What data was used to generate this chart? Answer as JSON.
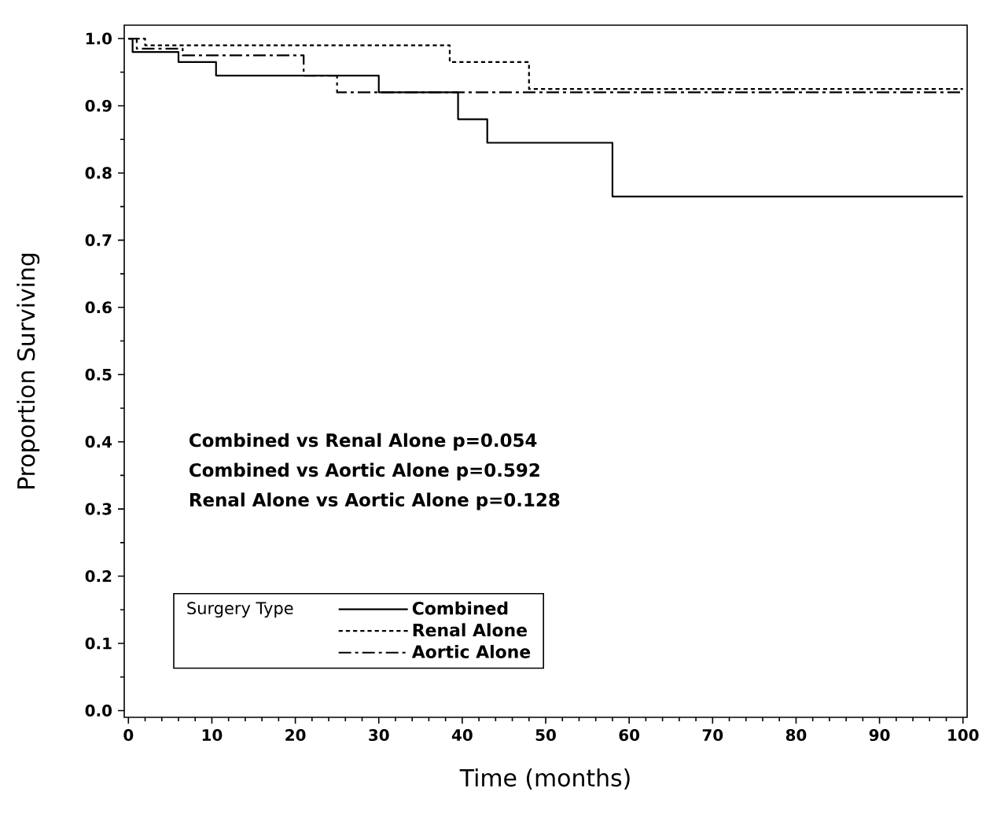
{
  "chart_data": {
    "type": "step",
    "xlabel": "Time (months)",
    "ylabel": "Proportion Surviving",
    "legend_title": "Surgery Type",
    "legend": "bottom left",
    "annotations": [
      "Combined vs Renal Alone p=0.054",
      "Combined vs Aortic Alone p=0.592",
      "Renal Alone vs Aortic Alone p=0.128"
    ],
    "xlim": [
      -0.5,
      100.5
    ],
    "ylim": [
      -0.01,
      1.02
    ],
    "xticks": [
      0,
      10,
      20,
      30,
      40,
      50,
      60,
      70,
      80,
      90,
      100
    ],
    "yticks": [
      {
        "value": 0,
        "label": "0.0"
      },
      0.1,
      0.2,
      0.3,
      0.4,
      0.5,
      0.6,
      0.7,
      0.8,
      0.9,
      {
        "value": 1,
        "label": "1.0"
      }
    ],
    "series": [
      {
        "name": "Combined",
        "color": "#000000",
        "line_style": "solid",
        "x": [
          0,
          0.5,
          6,
          10.5,
          30,
          39.5,
          43,
          58,
          100
        ],
        "values": [
          1.0,
          0.98,
          0.965,
          0.945,
          0.92,
          0.88,
          0.845,
          0.765,
          0.765
        ]
      },
      {
        "name": "Renal Alone",
        "color": "#000000",
        "line_style": "dotted",
        "x": [
          0,
          2,
          38.5,
          48,
          100
        ],
        "values": [
          1.0,
          0.99,
          0.965,
          0.925,
          0.925
        ]
      },
      {
        "name": "Aortic Alone",
        "color": "#000000",
        "line_style": "dashed",
        "x": [
          0,
          1,
          6.5,
          21,
          25,
          100
        ],
        "values": [
          1.0,
          0.985,
          0.975,
          0.945,
          0.92,
          0.92
        ]
      }
    ]
  }
}
